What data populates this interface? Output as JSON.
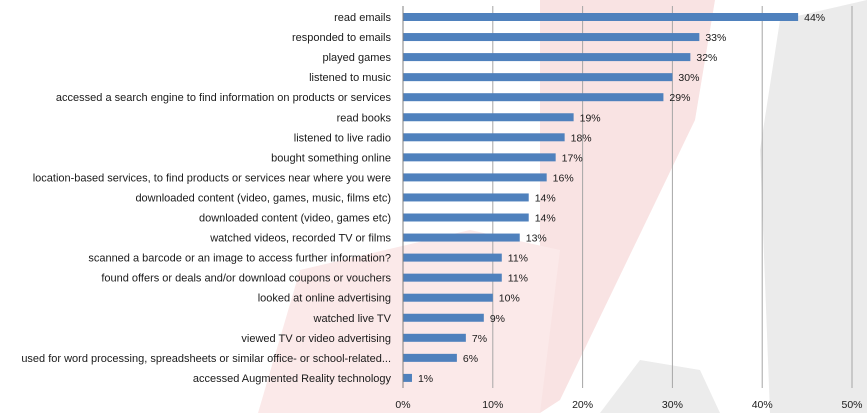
{
  "chart_data": {
    "type": "bar",
    "orientation": "horizontal",
    "categories": [
      "read emails",
      "responded to emails",
      "played games",
      "listened to music",
      "accessed a search engine to find information on products or services",
      "read books",
      "listened to live radio",
      "bought something online",
      "location-based services, to find products or services near where you were",
      "downloaded content (video, games, music, films etc)",
      "downloaded content (video, games etc)",
      "watched videos, recorded TV or films",
      "scanned a barcode or an image to access further information?",
      "found offers or deals and/or download coupons or vouchers",
      "looked at online advertising",
      "watched live TV",
      "viewed TV or video advertising",
      "used for word processing, spreadsheets or similar office- or school-related...",
      "accessed Augmented Reality technology"
    ],
    "values": [
      44,
      33,
      32,
      30,
      29,
      19,
      18,
      17,
      16,
      14,
      14,
      13,
      11,
      11,
      10,
      9,
      7,
      6,
      1
    ],
    "value_labels": [
      "44%",
      "33%",
      "32%",
      "30%",
      "29%",
      "19%",
      "18%",
      "17%",
      "16%",
      "14%",
      "14%",
      "13%",
      "11%",
      "11%",
      "10%",
      "9%",
      "7%",
      "6%",
      "1%"
    ],
    "xlim": [
      0,
      50
    ],
    "x_ticks": [
      0,
      10,
      20,
      30,
      40,
      50
    ],
    "x_tick_labels": [
      "0%",
      "10%",
      "20%",
      "30%",
      "40%",
      "50%"
    ],
    "title": "",
    "xlabel": "",
    "ylabel": "",
    "grid": "vertical",
    "legend": "none",
    "colors": {
      "bar": "#4f81bd",
      "grid": "#a6a6a6",
      "background_red": "#f7dcdc",
      "background_gray": "#e6e6e6"
    }
  }
}
